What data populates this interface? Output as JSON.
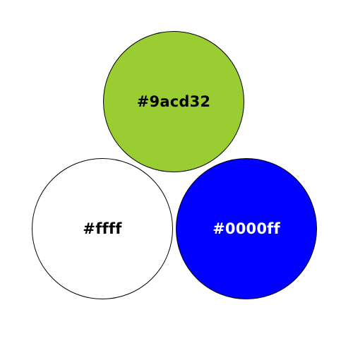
{
  "circles": [
    {
      "label": "#9acd32",
      "fill": "#9acd32",
      "text_color": "#000000"
    },
    {
      "label": "#ffff",
      "fill": "#ffffff",
      "text_color": "#000000"
    },
    {
      "label": "#0000ff",
      "fill": "#0000ff",
      "text_color": "#ffffff"
    }
  ]
}
